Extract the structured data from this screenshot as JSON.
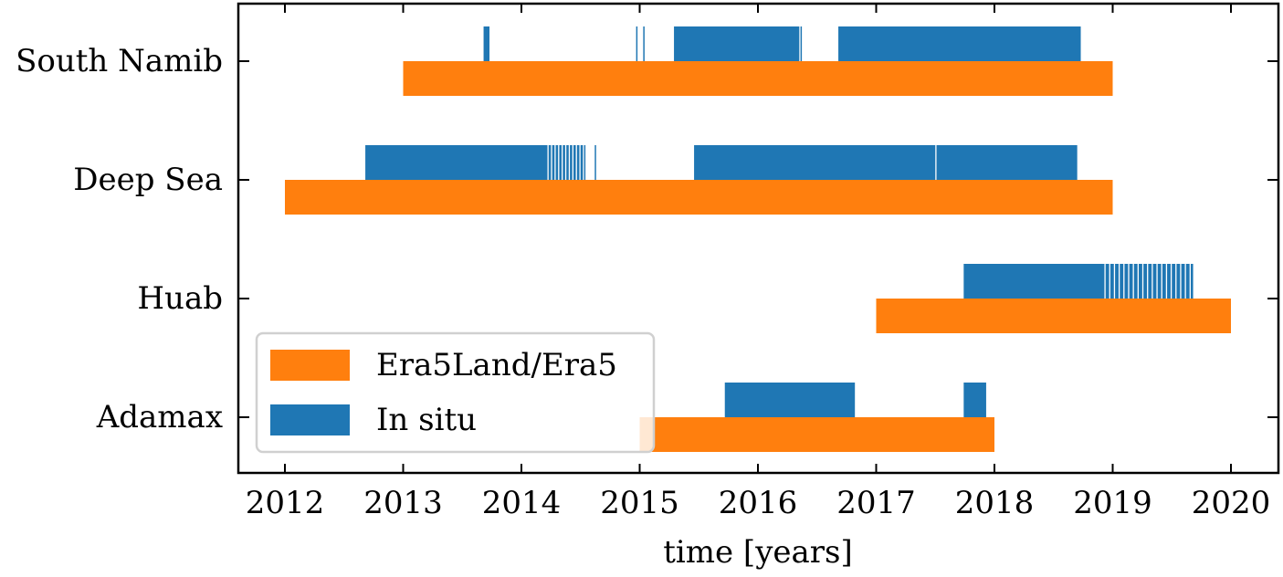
{
  "chart_data": {
    "type": "timeline",
    "xlabel": "time [years]",
    "ylabel": "",
    "xlim": [
      2011.6,
      2020.4
    ],
    "x_ticks": [
      2012,
      2013,
      2014,
      2015,
      2016,
      2017,
      2018,
      2019,
      2020
    ],
    "x_tick_labels": [
      "2012",
      "2013",
      "2014",
      "2015",
      "2016",
      "2017",
      "2018",
      "2019",
      "2020"
    ],
    "grid": false,
    "legend_position": "lower-left",
    "categories": [
      "South Namib",
      "Deep Sea",
      "Huab",
      "Adamax"
    ],
    "series": [
      {
        "name": "Era5Land/Era5",
        "color": "#ff7f0e",
        "bars": [
          {
            "category": "South Namib",
            "start": 2013.0,
            "end": 2019.0
          },
          {
            "category": "Deep Sea",
            "start": 2012.0,
            "end": 2019.0
          },
          {
            "category": "Huab",
            "start": 2017.0,
            "end": 2020.0
          },
          {
            "category": "Adamax",
            "start": 2015.0,
            "end": 2018.0
          }
        ]
      },
      {
        "name": "In situ",
        "color": "#1f77b4",
        "bars": [
          {
            "category": "South Namib",
            "start": 2013.68,
            "end": 2013.73
          },
          {
            "category": "South Namib",
            "start": 2014.97,
            "end": 2014.98
          },
          {
            "category": "South Namib",
            "start": 2015.03,
            "end": 2015.04
          },
          {
            "category": "South Namib",
            "start": 2015.29,
            "end": 2016.35
          },
          {
            "category": "South Namib",
            "start": 2016.36,
            "end": 2016.37
          },
          {
            "category": "South Namib",
            "start": 2016.68,
            "end": 2018.73
          },
          {
            "category": "Deep Sea",
            "start": 2012.68,
            "end": 2014.22
          },
          {
            "category": "Deep Sea",
            "start": 2014.23,
            "end": 2014.25
          },
          {
            "category": "Deep Sea",
            "start": 2014.26,
            "end": 2014.28
          },
          {
            "category": "Deep Sea",
            "start": 2014.29,
            "end": 2014.31
          },
          {
            "category": "Deep Sea",
            "start": 2014.32,
            "end": 2014.34
          },
          {
            "category": "Deep Sea",
            "start": 2014.35,
            "end": 2014.37
          },
          {
            "category": "Deep Sea",
            "start": 2014.38,
            "end": 2014.4
          },
          {
            "category": "Deep Sea",
            "start": 2014.41,
            "end": 2014.43
          },
          {
            "category": "Deep Sea",
            "start": 2014.44,
            "end": 2014.46
          },
          {
            "category": "Deep Sea",
            "start": 2014.47,
            "end": 2014.49
          },
          {
            "category": "Deep Sea",
            "start": 2014.5,
            "end": 2014.52
          },
          {
            "category": "Deep Sea",
            "start": 2014.53,
            "end": 2014.54
          },
          {
            "category": "Deep Sea",
            "start": 2014.62,
            "end": 2014.63
          },
          {
            "category": "Deep Sea",
            "start": 2015.46,
            "end": 2017.5
          },
          {
            "category": "Deep Sea",
            "start": 2017.51,
            "end": 2018.7
          },
          {
            "category": "Huab",
            "start": 2017.74,
            "end": 2018.93
          },
          {
            "category": "Huab",
            "start": 2018.94,
            "end": 2018.97
          },
          {
            "category": "Huab",
            "start": 2018.98,
            "end": 2019.01
          },
          {
            "category": "Huab",
            "start": 2019.02,
            "end": 2019.05
          },
          {
            "category": "Huab",
            "start": 2019.06,
            "end": 2019.09
          },
          {
            "category": "Huab",
            "start": 2019.1,
            "end": 2019.13
          },
          {
            "category": "Huab",
            "start": 2019.14,
            "end": 2019.17
          },
          {
            "category": "Huab",
            "start": 2019.18,
            "end": 2019.21
          },
          {
            "category": "Huab",
            "start": 2019.22,
            "end": 2019.25
          },
          {
            "category": "Huab",
            "start": 2019.26,
            "end": 2019.29
          },
          {
            "category": "Huab",
            "start": 2019.3,
            "end": 2019.33
          },
          {
            "category": "Huab",
            "start": 2019.34,
            "end": 2019.37
          },
          {
            "category": "Huab",
            "start": 2019.38,
            "end": 2019.41
          },
          {
            "category": "Huab",
            "start": 2019.42,
            "end": 2019.45
          },
          {
            "category": "Huab",
            "start": 2019.46,
            "end": 2019.49
          },
          {
            "category": "Huab",
            "start": 2019.5,
            "end": 2019.53
          },
          {
            "category": "Huab",
            "start": 2019.54,
            "end": 2019.57
          },
          {
            "category": "Huab",
            "start": 2019.58,
            "end": 2019.61
          },
          {
            "category": "Huab",
            "start": 2019.62,
            "end": 2019.65
          },
          {
            "category": "Huab",
            "start": 2019.66,
            "end": 2019.68
          },
          {
            "category": "Adamax",
            "start": 2015.72,
            "end": 2016.82
          },
          {
            "category": "Adamax",
            "start": 2017.74,
            "end": 2017.93
          }
        ]
      }
    ]
  }
}
